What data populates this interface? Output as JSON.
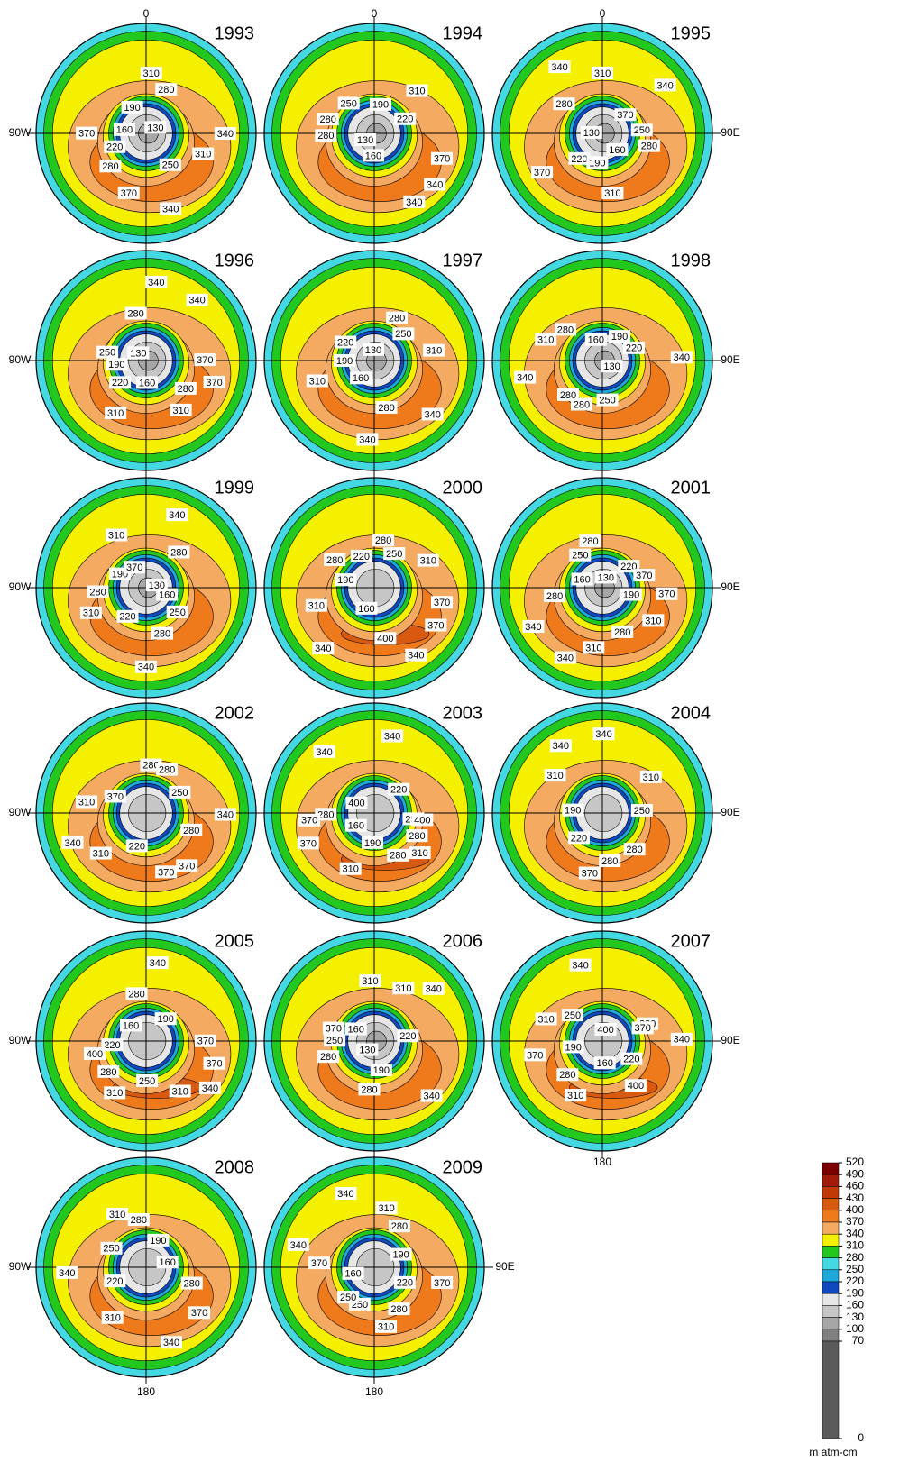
{
  "maps": [
    {
      "year": "1993",
      "labels": [
        340,
        280,
        310,
        250,
        160,
        130,
        370,
        190,
        310,
        220,
        280,
        340,
        370
      ]
    },
    {
      "year": "1994",
      "labels": [
        340,
        280,
        310,
        160,
        250,
        370,
        130,
        190,
        340,
        280,
        220
      ]
    },
    {
      "year": "1995",
      "labels": [
        310,
        280,
        250,
        220,
        310,
        160,
        130,
        340,
        190,
        340,
        280,
        370,
        370
      ]
    },
    {
      "year": "1996",
      "labels": [
        310,
        280,
        280,
        190,
        340,
        160,
        130,
        370,
        220,
        340,
        310,
        250,
        370
      ]
    },
    {
      "year": "1997",
      "labels": [
        310,
        280,
        280,
        220,
        310,
        160,
        130,
        340,
        190,
        250,
        340
      ]
    },
    {
      "year": "1998",
      "labels": [
        310,
        220,
        280,
        160,
        130,
        340,
        190,
        250,
        280,
        340,
        280
      ]
    },
    {
      "year": "1999",
      "labels": [
        310,
        160,
        310,
        340,
        280,
        190,
        130,
        220,
        370,
        250,
        280,
        280,
        340
      ]
    },
    {
      "year": "2000",
      "labels": [
        280,
        340,
        190,
        310,
        160,
        220,
        370,
        310,
        250,
        400,
        280,
        370,
        340
      ]
    },
    {
      "year": "2001",
      "labels": [
        220,
        310,
        250,
        190,
        340,
        130,
        280,
        160,
        370,
        340,
        280,
        310,
        280,
        370
      ]
    },
    {
      "year": "2002",
      "labels": [
        340,
        310,
        280,
        370,
        310,
        250,
        220,
        370,
        280,
        340,
        280,
        370
      ]
    },
    {
      "year": "2003",
      "labels": [
        310,
        280,
        220,
        190,
        340,
        250,
        160,
        340,
        280,
        370,
        400,
        310,
        400,
        280,
        370
      ]
    },
    {
      "year": "2004",
      "labels": [
        280,
        310,
        250,
        220,
        340,
        280,
        190,
        310,
        370,
        340
      ]
    },
    {
      "year": "2005",
      "labels": [
        310,
        280,
        340,
        220,
        190,
        250,
        160,
        370,
        280,
        340,
        310,
        400,
        370
      ]
    },
    {
      "year": "2006",
      "labels": [
        280,
        310,
        190,
        160,
        220,
        130,
        310,
        340,
        250,
        340,
        280,
        370
      ]
    },
    {
      "year": "2007",
      "labels": [
        310,
        280,
        310,
        340,
        220,
        190,
        370,
        160,
        250,
        340,
        280,
        400,
        400,
        370
      ]
    },
    {
      "year": "2008",
      "labels": [
        310,
        280,
        220,
        190,
        340,
        250,
        160,
        310,
        280,
        370,
        340
      ]
    },
    {
      "year": "2009",
      "labels": [
        310,
        280,
        340,
        190,
        250,
        340,
        220,
        160,
        280,
        310,
        370,
        370,
        250
      ]
    }
  ],
  "axis_labels": {
    "top": "0",
    "left": "90W",
    "right": "90E",
    "bottom": "180"
  },
  "colorbar": {
    "levels": [
      520,
      490,
      460,
      430,
      400,
      370,
      340,
      310,
      280,
      250,
      220,
      190,
      160,
      130,
      100,
      70,
      0
    ],
    "colors": [
      "#7a0000",
      "#a01c08",
      "#c03a08",
      "#d85a10",
      "#ee7a1c",
      "#f5aa62",
      "#f4f000",
      "#22c81e",
      "#44d8e2",
      "#1ea8dc",
      "#1048c0",
      "#e6e6e6",
      "#c6c6c6",
      "#a6a6a6",
      "#808080",
      "#5a5a5a"
    ],
    "unit": "m atm-cm"
  }
}
